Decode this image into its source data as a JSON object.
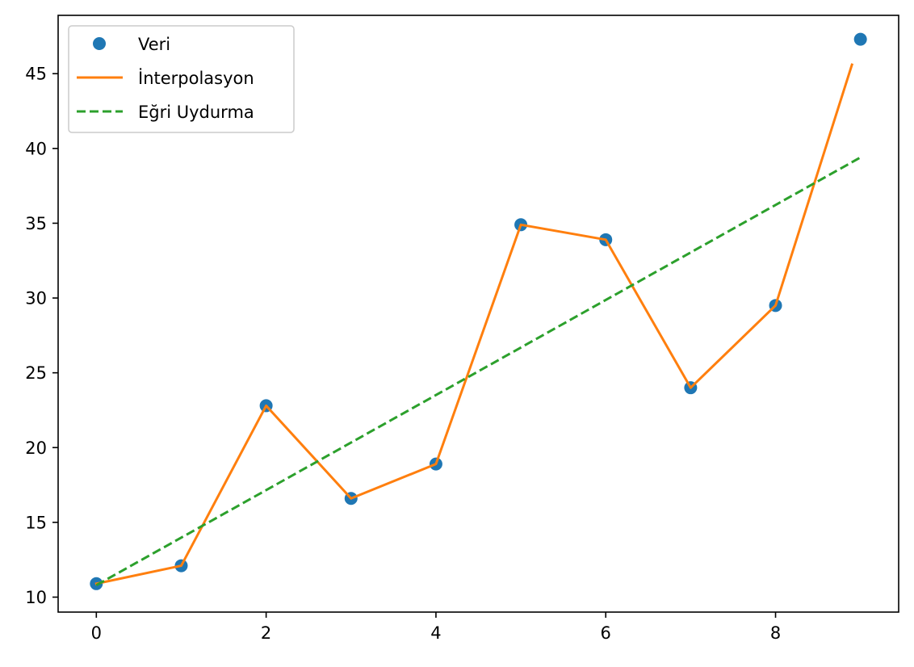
{
  "chart_data": {
    "type": "line",
    "title": "",
    "xlabel": "",
    "ylabel": "",
    "xlim": [
      -0.45,
      9.45
    ],
    "ylim": [
      9.0,
      48.9
    ],
    "x_ticks": [
      0,
      2,
      4,
      6,
      8
    ],
    "y_ticks": [
      10,
      15,
      20,
      25,
      30,
      35,
      40,
      45
    ],
    "grid": false,
    "legend_position": "top-left",
    "series": [
      {
        "name": "Veri",
        "kind": "scatter",
        "color": "#1f77b4",
        "x": [
          0,
          1,
          2,
          3,
          4,
          5,
          6,
          7,
          8,
          9
        ],
        "y": [
          10.9,
          12.1,
          22.8,
          16.6,
          18.9,
          34.9,
          33.9,
          24.0,
          29.5,
          47.3
        ]
      },
      {
        "name": "İnterpolasyon",
        "kind": "line",
        "color": "#ff7f0e",
        "dash": "solid",
        "x": [
          0,
          1,
          2,
          3,
          4,
          5,
          6,
          7,
          8,
          8.9
        ],
        "y": [
          10.9,
          12.1,
          22.8,
          16.6,
          18.9,
          34.9,
          33.9,
          24.0,
          29.5,
          45.6
        ]
      },
      {
        "name": "Eğri Uydurma",
        "kind": "line",
        "color": "#2ca02c",
        "dash": "dashed",
        "x": [
          0,
          9
        ],
        "y": [
          10.8,
          39.4
        ]
      }
    ]
  }
}
